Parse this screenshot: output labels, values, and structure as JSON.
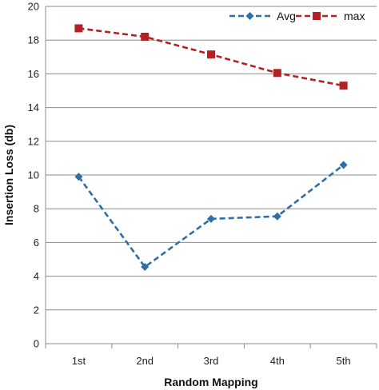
{
  "chart_data": {
    "type": "line",
    "categories": [
      "1st",
      "2nd",
      "3rd",
      "4th",
      "5th"
    ],
    "series": [
      {
        "name": "Avg",
        "values": [
          9.9,
          4.55,
          7.4,
          7.55,
          10.6
        ],
        "color": "#2e6fa8",
        "marker": "diamond"
      },
      {
        "name": "max",
        "values": [
          18.7,
          18.2,
          17.15,
          16.05,
          15.3
        ],
        "color": "#b22222",
        "marker": "square"
      }
    ],
    "xlabel": "Random Mapping",
    "ylabel": "Insertion Loss (db)",
    "ylim": [
      0,
      20
    ],
    "yticks": [
      0,
      2,
      4,
      6,
      8,
      10,
      12,
      14,
      16,
      18,
      20
    ],
    "grid": "horizontal",
    "legend": "top-right",
    "line_style": "dashed"
  }
}
